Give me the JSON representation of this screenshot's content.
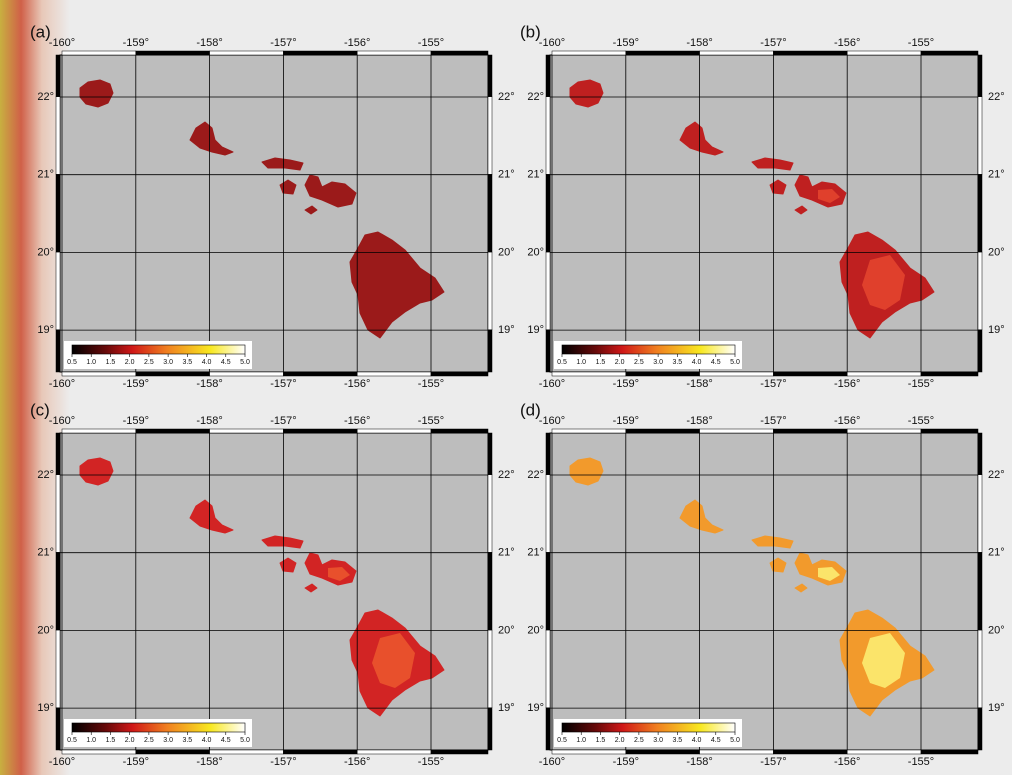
{
  "panels": [
    {
      "label": "(a)"
    },
    {
      "label": "(b)"
    },
    {
      "label": "(c)"
    },
    {
      "label": "(d)"
    }
  ],
  "lon_ticks": [
    {
      "value": -160,
      "label": "-160°"
    },
    {
      "value": -159,
      "label": "-159°"
    },
    {
      "value": -158,
      "label": "-158°"
    },
    {
      "value": -157,
      "label": "-157°"
    },
    {
      "value": -156,
      "label": "-156°"
    },
    {
      "value": -155,
      "label": "-155°"
    }
  ],
  "lat_ticks": [
    {
      "value": 22,
      "label": "22°"
    },
    {
      "value": 21,
      "label": "21°"
    },
    {
      "value": 20,
      "label": "20°"
    },
    {
      "value": 19,
      "label": "19°"
    }
  ],
  "colorbar_ticks": [
    0.5,
    {
      "value": 1,
      "label": "1.0"
    },
    1.5,
    {
      "value": 2,
      "label": "2.0"
    },
    2.5,
    {
      "value": 3,
      "label": "3.0"
    },
    3.5,
    {
      "value": 4,
      "label": "4.0"
    },
    4.5,
    {
      "value": 5,
      "label": "5.0"
    }
  ]
}
